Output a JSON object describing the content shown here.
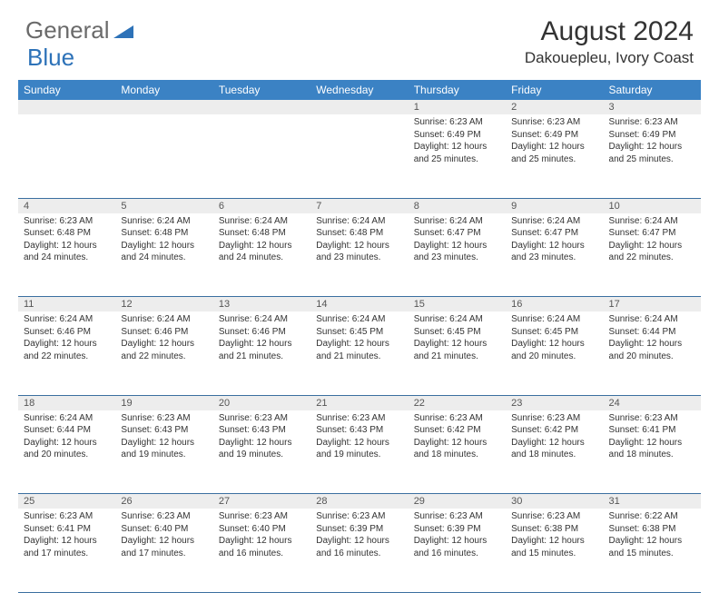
{
  "brand": {
    "part1": "General",
    "part2": "Blue"
  },
  "title": "August 2024",
  "location": "Dakouepleu, Ivory Coast",
  "colors": {
    "header_bg": "#3b82c4",
    "header_text": "#ffffff",
    "daynum_bg": "#ededed",
    "border": "#3b6fa0",
    "logo_gray": "#6a6a6a",
    "logo_blue": "#2d72b8"
  },
  "weekdays": [
    "Sunday",
    "Monday",
    "Tuesday",
    "Wednesday",
    "Thursday",
    "Friday",
    "Saturday"
  ],
  "weeks": [
    {
      "nums": [
        "",
        "",
        "",
        "",
        "1",
        "2",
        "3"
      ],
      "cells": [
        null,
        null,
        null,
        null,
        {
          "sunrise": "Sunrise: 6:23 AM",
          "sunset": "Sunset: 6:49 PM",
          "day": "Daylight: 12 hours and 25 minutes."
        },
        {
          "sunrise": "Sunrise: 6:23 AM",
          "sunset": "Sunset: 6:49 PM",
          "day": "Daylight: 12 hours and 25 minutes."
        },
        {
          "sunrise": "Sunrise: 6:23 AM",
          "sunset": "Sunset: 6:49 PM",
          "day": "Daylight: 12 hours and 25 minutes."
        }
      ]
    },
    {
      "nums": [
        "4",
        "5",
        "6",
        "7",
        "8",
        "9",
        "10"
      ],
      "cells": [
        {
          "sunrise": "Sunrise: 6:23 AM",
          "sunset": "Sunset: 6:48 PM",
          "day": "Daylight: 12 hours and 24 minutes."
        },
        {
          "sunrise": "Sunrise: 6:24 AM",
          "sunset": "Sunset: 6:48 PM",
          "day": "Daylight: 12 hours and 24 minutes."
        },
        {
          "sunrise": "Sunrise: 6:24 AM",
          "sunset": "Sunset: 6:48 PM",
          "day": "Daylight: 12 hours and 24 minutes."
        },
        {
          "sunrise": "Sunrise: 6:24 AM",
          "sunset": "Sunset: 6:48 PM",
          "day": "Daylight: 12 hours and 23 minutes."
        },
        {
          "sunrise": "Sunrise: 6:24 AM",
          "sunset": "Sunset: 6:47 PM",
          "day": "Daylight: 12 hours and 23 minutes."
        },
        {
          "sunrise": "Sunrise: 6:24 AM",
          "sunset": "Sunset: 6:47 PM",
          "day": "Daylight: 12 hours and 23 minutes."
        },
        {
          "sunrise": "Sunrise: 6:24 AM",
          "sunset": "Sunset: 6:47 PM",
          "day": "Daylight: 12 hours and 22 minutes."
        }
      ]
    },
    {
      "nums": [
        "11",
        "12",
        "13",
        "14",
        "15",
        "16",
        "17"
      ],
      "cells": [
        {
          "sunrise": "Sunrise: 6:24 AM",
          "sunset": "Sunset: 6:46 PM",
          "day": "Daylight: 12 hours and 22 minutes."
        },
        {
          "sunrise": "Sunrise: 6:24 AM",
          "sunset": "Sunset: 6:46 PM",
          "day": "Daylight: 12 hours and 22 minutes."
        },
        {
          "sunrise": "Sunrise: 6:24 AM",
          "sunset": "Sunset: 6:46 PM",
          "day": "Daylight: 12 hours and 21 minutes."
        },
        {
          "sunrise": "Sunrise: 6:24 AM",
          "sunset": "Sunset: 6:45 PM",
          "day": "Daylight: 12 hours and 21 minutes."
        },
        {
          "sunrise": "Sunrise: 6:24 AM",
          "sunset": "Sunset: 6:45 PM",
          "day": "Daylight: 12 hours and 21 minutes."
        },
        {
          "sunrise": "Sunrise: 6:24 AM",
          "sunset": "Sunset: 6:45 PM",
          "day": "Daylight: 12 hours and 20 minutes."
        },
        {
          "sunrise": "Sunrise: 6:24 AM",
          "sunset": "Sunset: 6:44 PM",
          "day": "Daylight: 12 hours and 20 minutes."
        }
      ]
    },
    {
      "nums": [
        "18",
        "19",
        "20",
        "21",
        "22",
        "23",
        "24"
      ],
      "cells": [
        {
          "sunrise": "Sunrise: 6:24 AM",
          "sunset": "Sunset: 6:44 PM",
          "day": "Daylight: 12 hours and 20 minutes."
        },
        {
          "sunrise": "Sunrise: 6:23 AM",
          "sunset": "Sunset: 6:43 PM",
          "day": "Daylight: 12 hours and 19 minutes."
        },
        {
          "sunrise": "Sunrise: 6:23 AM",
          "sunset": "Sunset: 6:43 PM",
          "day": "Daylight: 12 hours and 19 minutes."
        },
        {
          "sunrise": "Sunrise: 6:23 AM",
          "sunset": "Sunset: 6:43 PM",
          "day": "Daylight: 12 hours and 19 minutes."
        },
        {
          "sunrise": "Sunrise: 6:23 AM",
          "sunset": "Sunset: 6:42 PM",
          "day": "Daylight: 12 hours and 18 minutes."
        },
        {
          "sunrise": "Sunrise: 6:23 AM",
          "sunset": "Sunset: 6:42 PM",
          "day": "Daylight: 12 hours and 18 minutes."
        },
        {
          "sunrise": "Sunrise: 6:23 AM",
          "sunset": "Sunset: 6:41 PM",
          "day": "Daylight: 12 hours and 18 minutes."
        }
      ]
    },
    {
      "nums": [
        "25",
        "26",
        "27",
        "28",
        "29",
        "30",
        "31"
      ],
      "cells": [
        {
          "sunrise": "Sunrise: 6:23 AM",
          "sunset": "Sunset: 6:41 PM",
          "day": "Daylight: 12 hours and 17 minutes."
        },
        {
          "sunrise": "Sunrise: 6:23 AM",
          "sunset": "Sunset: 6:40 PM",
          "day": "Daylight: 12 hours and 17 minutes."
        },
        {
          "sunrise": "Sunrise: 6:23 AM",
          "sunset": "Sunset: 6:40 PM",
          "day": "Daylight: 12 hours and 16 minutes."
        },
        {
          "sunrise": "Sunrise: 6:23 AM",
          "sunset": "Sunset: 6:39 PM",
          "day": "Daylight: 12 hours and 16 minutes."
        },
        {
          "sunrise": "Sunrise: 6:23 AM",
          "sunset": "Sunset: 6:39 PM",
          "day": "Daylight: 12 hours and 16 minutes."
        },
        {
          "sunrise": "Sunrise: 6:23 AM",
          "sunset": "Sunset: 6:38 PM",
          "day": "Daylight: 12 hours and 15 minutes."
        },
        {
          "sunrise": "Sunrise: 6:22 AM",
          "sunset": "Sunset: 6:38 PM",
          "day": "Daylight: 12 hours and 15 minutes."
        }
      ]
    }
  ]
}
